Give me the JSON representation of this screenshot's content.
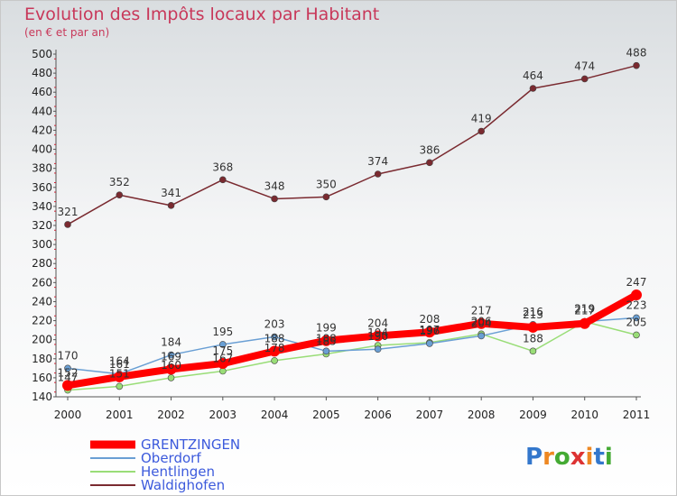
{
  "chart_data": {
    "type": "line",
    "title": "Evolution des Impôts locaux par Habitant",
    "subtitle": "(en € et par an)",
    "categories": [
      "2000",
      "2001",
      "2002",
      "2003",
      "2004",
      "2005",
      "2006",
      "2007",
      "2008",
      "2009",
      "2010",
      "2011"
    ],
    "ylim": [
      140,
      500
    ],
    "yticks": [
      140,
      160,
      180,
      200,
      220,
      240,
      260,
      280,
      300,
      320,
      340,
      360,
      380,
      400,
      420,
      440,
      460,
      480,
      500
    ],
    "grid": false,
    "legend_position": "bottom-left",
    "series": [
      {
        "name": "GRENTZINGEN",
        "color": "#ff0000",
        "values": [
          152,
          161,
          169,
          175,
          188,
          199,
          204,
          208,
          217,
          213,
          217,
          247
        ],
        "labels": [
          "152",
          "161",
          "169",
          "175",
          "188",
          "199",
          "204",
          "208",
          "217",
          "213",
          "217",
          "247"
        ]
      },
      {
        "name": "Oberdorf",
        "color": "#6a9fd4",
        "values": [
          170,
          164,
          184,
          195,
          203,
          188,
          190,
          196,
          204,
          216,
          219,
          223
        ],
        "labels": [
          "170",
          "164",
          "184",
          "195",
          "203",
          "188",
          "190",
          "196",
          "204",
          "216",
          "219",
          "223"
        ]
      },
      {
        "name": "Hentlingen",
        "color": "#99dd77",
        "values": [
          147,
          151,
          160,
          167,
          178,
          185,
          194,
          197,
          206,
          188,
          219,
          205
        ],
        "labels": [
          "147",
          "151",
          "160",
          "167",
          "178",
          "185",
          "194",
          "197",
          "206",
          "188",
          "219",
          "205"
        ]
      },
      {
        "name": "Waldighofen",
        "color": "#7a2a30",
        "values": [
          321,
          352,
          341,
          368,
          348,
          350,
          374,
          386,
          419,
          464,
          474,
          488
        ],
        "labels": [
          "321",
          "352",
          "341",
          "368",
          "348",
          "350",
          "374",
          "386",
          "419",
          "464",
          "474",
          "488"
        ]
      }
    ]
  },
  "logo": {
    "text": "Proxiti",
    "letters": [
      "P",
      "r",
      "o",
      "x",
      "i",
      "t",
      "i"
    ],
    "colors": [
      "#3377cc",
      "#ee8822",
      "#44aa33",
      "#dd3333",
      "#ee8822",
      "#3377cc",
      "#44aa33"
    ]
  }
}
